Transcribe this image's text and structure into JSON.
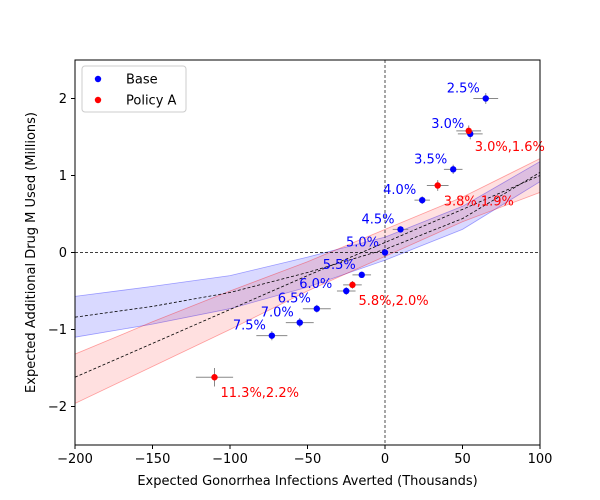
{
  "chart_data": {
    "type": "scatter",
    "title": "",
    "xlabel": "Expected Gonorrhea Infections Averted (Thousands)",
    "ylabel": "Expected Additional Drug M Used (Millions)",
    "xlim": [
      -200,
      100
    ],
    "ylim": [
      -2.5,
      2.5
    ],
    "xticks": [
      -200,
      -150,
      -100,
      -50,
      0,
      50,
      100
    ],
    "xtick_labels": [
      "−200",
      "−150",
      "−100",
      "−50",
      "0",
      "50",
      "100"
    ],
    "yticks": [
      -2,
      -1,
      0,
      1,
      2
    ],
    "ytick_labels": [
      "−2",
      "−1",
      "0",
      "1",
      "2"
    ],
    "grid": false,
    "legend_position": "top-left",
    "reference_lines": [
      {
        "axis": "x",
        "value": 0,
        "style": "dashed"
      },
      {
        "axis": "y",
        "value": 0,
        "style": "dashed"
      }
    ],
    "series": [
      {
        "name": "Base",
        "color": "#0000ff",
        "points": [
          {
            "x": 65,
            "y": 2.0,
            "xerr": 8,
            "yerr": 0.07,
            "label": "2.5%"
          },
          {
            "x": 55,
            "y": 1.54,
            "xerr": 8,
            "yerr": 0.07,
            "label": "3.0%"
          },
          {
            "x": 44,
            "y": 1.08,
            "xerr": 6,
            "yerr": 0.06,
            "label": "3.5%"
          },
          {
            "x": 24,
            "y": 0.68,
            "xerr": 5,
            "yerr": 0.05,
            "label": "4.0%"
          },
          {
            "x": 10,
            "y": 0.3,
            "xerr": 5,
            "yerr": 0.04,
            "label": "4.5%"
          },
          {
            "x": 0,
            "y": 0.0,
            "xerr": 0,
            "yerr": 0,
            "label": "5.0%"
          },
          {
            "x": -15,
            "y": -0.29,
            "xerr": 6,
            "yerr": 0.04,
            "label": "5.5%"
          },
          {
            "x": -25,
            "y": -0.5,
            "xerr": 6,
            "yerr": 0.05,
            "label": ""
          },
          {
            "x": -44,
            "y": -0.73,
            "xerr": 9,
            "yerr": 0.05,
            "label": "6.5%"
          },
          {
            "x": -55,
            "y": -0.91,
            "xerr": 9,
            "yerr": 0.06,
            "label": "7.0%"
          },
          {
            "x": -73,
            "y": -1.08,
            "xerr": 10,
            "yerr": 0.06,
            "label": "7.5%"
          }
        ]
      },
      {
        "name": "Policy A",
        "color": "#ff0000",
        "points": [
          {
            "x": 54,
            "y": 1.58,
            "xerr": 8,
            "yerr": 0.07,
            "label": "3.0%,1.6%"
          },
          {
            "x": 34,
            "y": 0.87,
            "xerr": 7,
            "yerr": 0.07,
            "label": "3.8%,1.9%"
          },
          {
            "x": -21,
            "y": -0.42,
            "xerr": 6,
            "yerr": 0.05,
            "label": "5.8%,2.0%"
          },
          {
            "x": -110,
            "y": -1.62,
            "xerr": 12,
            "yerr": 0.12,
            "label": "11.3%,2.2%"
          }
        ]
      }
    ],
    "point_annotations": {
      "6.0%": {
        "x": -25,
        "y": -0.5,
        "series": "Base"
      }
    },
    "fits": [
      {
        "name": "Base fit",
        "color": "#0000ff",
        "fill_opacity": 0.15,
        "x": [
          -200,
          -150,
          -100,
          -50,
          0,
          50,
          100
        ],
        "y": [
          -0.84,
          -0.7,
          -0.52,
          -0.26,
          0.04,
          0.44,
          1.04
        ],
        "lower": [
          -1.1,
          -0.93,
          -0.73,
          -0.45,
          -0.1,
          0.3,
          0.92
        ],
        "upper": [
          -0.57,
          -0.44,
          -0.3,
          -0.06,
          0.2,
          0.6,
          1.18
        ]
      },
      {
        "name": "Policy A fit",
        "color": "#ff0000",
        "fill_opacity": 0.12,
        "x": [
          -200,
          -150,
          -100,
          -50,
          0,
          50,
          100
        ],
        "y": [
          -1.62,
          -1.18,
          -0.74,
          -0.3,
          0.13,
          0.56,
          1.0
        ],
        "lower": [
          -1.96,
          -1.48,
          -1.0,
          -0.5,
          -0.05,
          0.4,
          0.78
        ],
        "upper": [
          -1.32,
          -0.9,
          -0.5,
          -0.12,
          0.3,
          0.72,
          1.22
        ]
      }
    ]
  }
}
